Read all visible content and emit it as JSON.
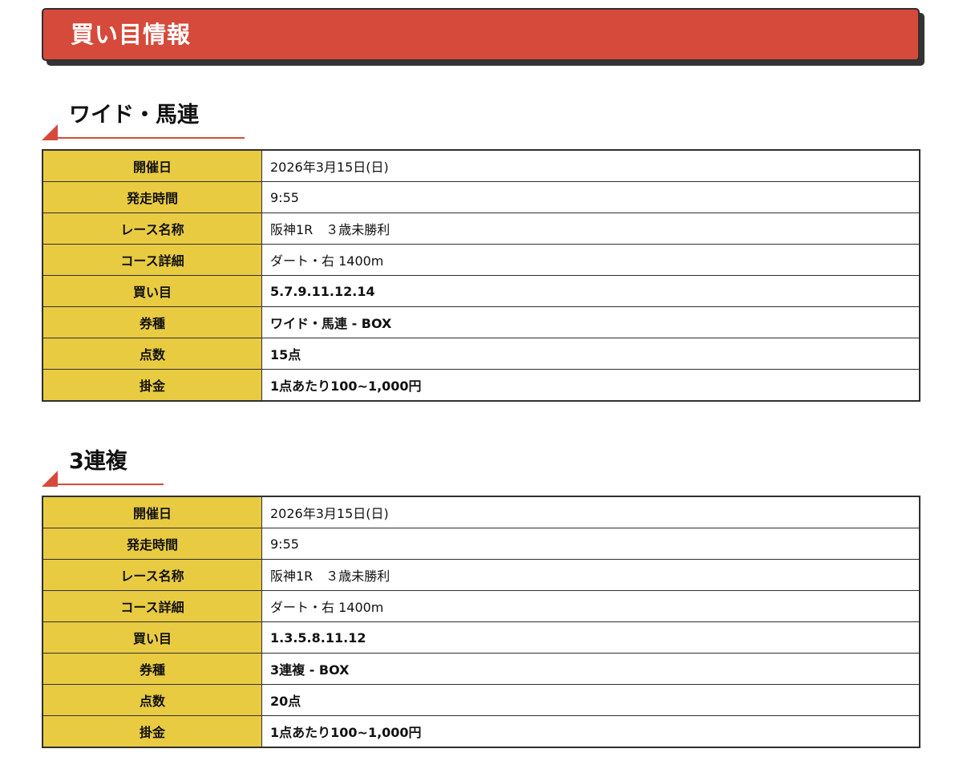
{
  "page_title": "買い目情報",
  "colors": {
    "accent": "#d64a3b",
    "label_bg": "#e9cb42",
    "border": "#2f2f2f"
  },
  "sections": [
    {
      "title": "ワイド・馬連",
      "rows": [
        {
          "label": "開催日",
          "value": "2026年3月15日(日)",
          "bold": false
        },
        {
          "label": "発走時間",
          "value": "9:55",
          "bold": false
        },
        {
          "label": "レース名称",
          "value": "阪神1R　３歳未勝利",
          "bold": false
        },
        {
          "label": "コース詳細",
          "value": "ダート・右 1400m",
          "bold": false
        },
        {
          "label": "買い目",
          "value": "5.7.9.11.12.14",
          "bold": true
        },
        {
          "label": "券種",
          "value": "ワイド・馬連 - BOX",
          "bold": true
        },
        {
          "label": "点数",
          "value": "15点",
          "bold": true
        },
        {
          "label": "掛金",
          "value": "1点あたり100~1,000円",
          "bold": true
        }
      ]
    },
    {
      "title": "3連複",
      "rows": [
        {
          "label": "開催日",
          "value": "2026年3月15日(日)",
          "bold": false
        },
        {
          "label": "発走時間",
          "value": "9:55",
          "bold": false
        },
        {
          "label": "レース名称",
          "value": "阪神1R　３歳未勝利",
          "bold": false
        },
        {
          "label": "コース詳細",
          "value": "ダート・右 1400m",
          "bold": false
        },
        {
          "label": "買い目",
          "value": "1.3.5.8.11.12",
          "bold": true
        },
        {
          "label": "券種",
          "value": "3連複 - BOX",
          "bold": true
        },
        {
          "label": "点数",
          "value": "20点",
          "bold": true
        },
        {
          "label": "掛金",
          "value": "1点あたり100~1,000円",
          "bold": true
        }
      ]
    }
  ]
}
